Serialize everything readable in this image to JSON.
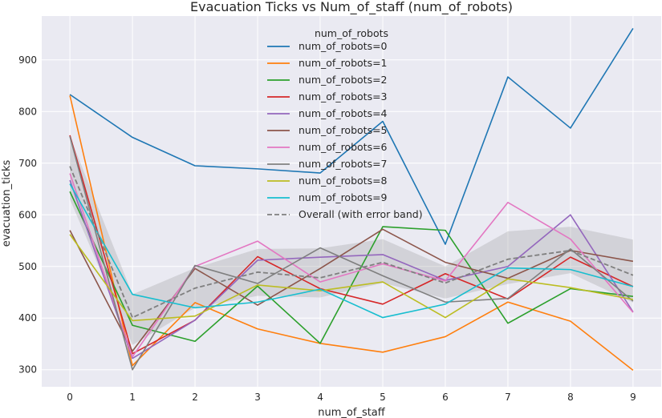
{
  "chart_data": {
    "type": "line",
    "title": "Evacuation Ticks vs Num_of_staff (num_of_robots)",
    "xlabel": "num_of_staff",
    "ylabel": "evacuation_ticks",
    "x": [
      0,
      1,
      2,
      3,
      4,
      5,
      6,
      7,
      8,
      9
    ],
    "xlim": [
      -0.45,
      9.45
    ],
    "ylim": [
      267,
      985
    ],
    "yticks": [
      300,
      400,
      500,
      600,
      700,
      800,
      900
    ],
    "grid": true,
    "legend": {
      "title": "num_of_robots",
      "placement": "top-center"
    },
    "series": [
      {
        "name": "num_of_robots=0",
        "color": "#1f77b4",
        "values": [
          833,
          750,
          695,
          689,
          681,
          781,
          543,
          867,
          768,
          961
        ]
      },
      {
        "name": "num_of_robots=1",
        "color": "#ff7f0e",
        "values": [
          831,
          308,
          430,
          379,
          351,
          334,
          364,
          431,
          394,
          299
        ]
      },
      {
        "name": "num_of_robots=2",
        "color": "#2ca02c",
        "values": [
          645,
          386,
          355,
          462,
          351,
          577,
          570,
          390,
          457,
          442
        ]
      },
      {
        "name": "num_of_robots=3",
        "color": "#d62728",
        "values": [
          754,
          331,
          396,
          519,
          457,
          427,
          486,
          437,
          518,
          461
        ]
      },
      {
        "name": "num_of_robots=4",
        "color": "#9467bd",
        "values": [
          667,
          322,
          396,
          512,
          518,
          523,
          473,
          500,
          600,
          412
        ]
      },
      {
        "name": "num_of_robots=5",
        "color": "#8c564b",
        "values": [
          570,
          336,
          496,
          425,
          496,
          572,
          508,
          477,
          531,
          510
        ]
      },
      {
        "name": "num_of_robots=6",
        "color": "#e377c2",
        "values": [
          680,
          325,
          500,
          549,
          470,
          505,
          472,
          624,
          553,
          411
        ]
      },
      {
        "name": "num_of_robots=7",
        "color": "#7f7f7f",
        "values": [
          752,
          300,
          502,
          467,
          536,
          482,
          431,
          438,
          534,
          433
        ]
      },
      {
        "name": "num_of_robots=8",
        "color": "#bcbd22",
        "values": [
          562,
          395,
          404,
          464,
          453,
          470,
          401,
          476,
          459,
          436
        ]
      },
      {
        "name": "num_of_robots=9",
        "color": "#17becf",
        "values": [
          660,
          446,
          420,
          431,
          456,
          401,
          427,
          497,
          494,
          461
        ]
      }
    ],
    "overall": {
      "name": "Overall (with error band)",
      "color": "#7f7f7f",
      "values": [
        694,
        401,
        458,
        489,
        478,
        508,
        468,
        514,
        531,
        483
      ],
      "band_lower": [
        630,
        348,
        420,
        443,
        440,
        468,
        438,
        466,
        487,
        430
      ],
      "band_upper": [
        752,
        446,
        497,
        534,
        535,
        553,
        500,
        568,
        577,
        552
      ]
    }
  }
}
